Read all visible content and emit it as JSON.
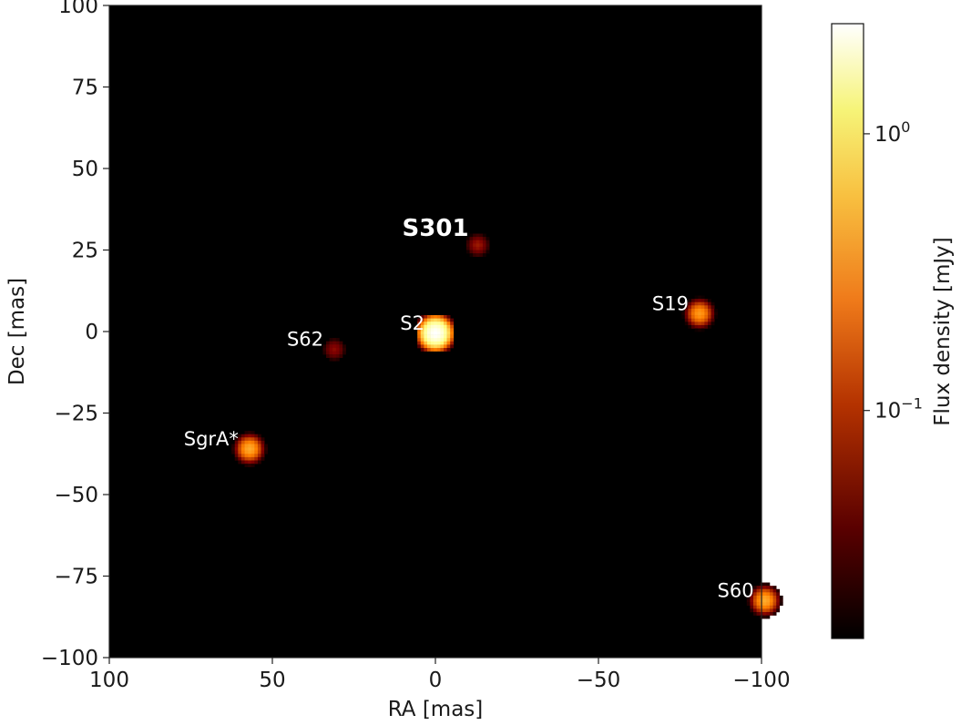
{
  "chart_data": {
    "type": "heatmap",
    "xlabel": "RA [mas]",
    "ylabel": "Dec [mas]",
    "xlim": [
      100,
      -100
    ],
    "ylim": [
      -100,
      100
    ],
    "xticks": [
      100,
      50,
      0,
      -50,
      -100
    ],
    "yticks": [
      100,
      75,
      50,
      25,
      0,
      -25,
      -50,
      -75,
      -100
    ],
    "background": "#000000",
    "colormap": "afmhot",
    "colorbar": {
      "label": "Flux density [mJy]",
      "scale": "log",
      "range": [
        0.015,
        2.5
      ],
      "ticks": [
        {
          "value": 1.0,
          "base": "10",
          "exp": "0"
        },
        {
          "value": 0.1,
          "base": "10",
          "exp": "−1"
        }
      ]
    },
    "sources": [
      {
        "label": "S301",
        "ra": -13,
        "dec": 26.5,
        "flux": 0.07,
        "bold": true,
        "label_anchor": "above-left"
      },
      {
        "label": "S2",
        "ra": 0,
        "dec": -0.5,
        "flux": 2.5,
        "bold": false,
        "label_anchor": "left"
      },
      {
        "label": "S62",
        "ra": 31,
        "dec": -5.5,
        "flux": 0.06,
        "bold": false,
        "label_anchor": "left"
      },
      {
        "label": "S19",
        "ra": -81,
        "dec": 5.5,
        "flux": 0.25,
        "bold": false,
        "label_anchor": "left"
      },
      {
        "label": "SgrA*",
        "ra": 57,
        "dec": -36,
        "flux": 0.3,
        "bold": false,
        "label_anchor": "left"
      },
      {
        "label": "S60",
        "ra": -101,
        "dec": -82.5,
        "flux": 0.3,
        "bold": false,
        "label_anchor": "left"
      }
    ]
  }
}
